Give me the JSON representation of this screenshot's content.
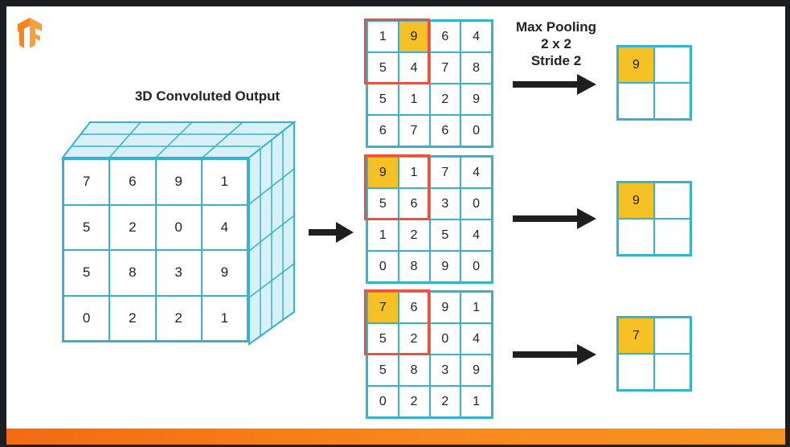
{
  "cube": {
    "title": "3D Convoluted Output",
    "front": [
      [
        "7",
        "6",
        "9",
        "1"
      ],
      [
        "5",
        "2",
        "0",
        "4"
      ],
      [
        "5",
        "8",
        "3",
        "9"
      ],
      [
        "0",
        "2",
        "2",
        "1"
      ]
    ]
  },
  "pooling": {
    "line1": "Max Pooling",
    "line2": "2 x 2",
    "line3": "Stride 2"
  },
  "slices": [
    {
      "grid": [
        [
          "1",
          "9",
          "6",
          "4"
        ],
        [
          "5",
          "4",
          "7",
          "8"
        ],
        [
          "5",
          "1",
          "2",
          "9"
        ],
        [
          "6",
          "7",
          "6",
          "0"
        ]
      ],
      "highlight": [
        0,
        1
      ],
      "output": "9"
    },
    {
      "grid": [
        [
          "9",
          "1",
          "7",
          "4"
        ],
        [
          "5",
          "6",
          "3",
          "0"
        ],
        [
          "1",
          "2",
          "5",
          "4"
        ],
        [
          "0",
          "8",
          "9",
          "0"
        ]
      ],
      "highlight": [
        0,
        0
      ],
      "output": "9"
    },
    {
      "grid": [
        [
          "7",
          "6",
          "9",
          "1"
        ],
        [
          "5",
          "2",
          "0",
          "4"
        ],
        [
          "5",
          "8",
          "3",
          "9"
        ],
        [
          "0",
          "2",
          "2",
          "1"
        ]
      ],
      "highlight": [
        0,
        0
      ],
      "output": "7"
    }
  ],
  "colors": {
    "grid_line": "#35b2cf",
    "highlight": "#f5c124",
    "pool_window": "#e8533f",
    "arrow": "#1f1f1f",
    "logo": "#f7851f",
    "bottom_bar": "#f26b12"
  }
}
